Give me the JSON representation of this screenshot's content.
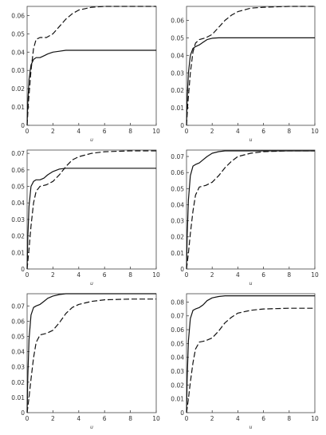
{
  "chart_data": [
    {
      "type": "line",
      "xlabel": "u",
      "ylabel": "",
      "xlim": [
        0,
        10
      ],
      "ylim": [
        0,
        0.065
      ],
      "xticks": [
        0,
        2,
        4,
        6,
        8,
        10
      ],
      "yticks": [
        0,
        0.01,
        0.02,
        0.03,
        0.04,
        0.05,
        0.06
      ],
      "series": [
        {
          "style": "solid",
          "x": [
            0,
            0.05,
            0.15,
            0.3,
            0.5,
            0.7,
            1.0,
            1.3,
            1.6,
            2.0,
            2.5,
            3.0,
            4.0,
            6.0,
            10.0
          ],
          "y": [
            0,
            0.012,
            0.025,
            0.033,
            0.036,
            0.037,
            0.037,
            0.038,
            0.039,
            0.04,
            0.0405,
            0.041,
            0.041,
            0.041,
            0.041
          ]
        },
        {
          "style": "dashed",
          "x": [
            0,
            0.1,
            0.3,
            0.5,
            0.7,
            1.0,
            1.5,
            2.0,
            2.5,
            3.0,
            3.5,
            4.0,
            5.0,
            6.0,
            8.0,
            10.0
          ],
          "y": [
            0,
            0.012,
            0.03,
            0.042,
            0.047,
            0.048,
            0.048,
            0.05,
            0.054,
            0.058,
            0.061,
            0.063,
            0.0645,
            0.065,
            0.065,
            0.065
          ]
        }
      ]
    },
    {
      "type": "line",
      "xlabel": "u",
      "ylabel": "",
      "xlim": [
        0,
        10
      ],
      "ylim": [
        0,
        0.068
      ],
      "xticks": [
        0,
        2,
        4,
        6,
        8,
        10
      ],
      "yticks": [
        0,
        0.01,
        0.02,
        0.03,
        0.04,
        0.05,
        0.06
      ],
      "series": [
        {
          "style": "solid",
          "x": [
            0,
            0.05,
            0.15,
            0.3,
            0.5,
            0.7,
            1.0,
            1.3,
            1.6,
            2.0,
            2.5,
            3.0,
            4.0,
            6.0,
            10.0
          ],
          "y": [
            0,
            0.015,
            0.03,
            0.04,
            0.044,
            0.045,
            0.046,
            0.0475,
            0.049,
            0.0498,
            0.05,
            0.05,
            0.05,
            0.05,
            0.05
          ]
        },
        {
          "style": "dashed",
          "x": [
            0,
            0.1,
            0.3,
            0.5,
            0.7,
            1.0,
            1.5,
            2.0,
            2.5,
            3.0,
            3.5,
            4.0,
            5.0,
            6.0,
            8.0,
            10.0
          ],
          "y": [
            0,
            0.012,
            0.03,
            0.042,
            0.047,
            0.049,
            0.05,
            0.052,
            0.056,
            0.06,
            0.063,
            0.065,
            0.067,
            0.0675,
            0.068,
            0.068
          ]
        }
      ]
    },
    {
      "type": "line",
      "xlabel": "u",
      "ylabel": "",
      "xlim": [
        0,
        10
      ],
      "ylim": [
        0,
        0.072
      ],
      "xticks": [
        0,
        2,
        4,
        6,
        8,
        10
      ],
      "yticks": [
        0,
        0.01,
        0.02,
        0.03,
        0.04,
        0.05,
        0.06,
        0.07
      ],
      "series": [
        {
          "style": "solid",
          "x": [
            0,
            0.05,
            0.15,
            0.3,
            0.5,
            0.7,
            1.0,
            1.3,
            1.6,
            2.0,
            2.5,
            3.0,
            4.0,
            6.0,
            10.0
          ],
          "y": [
            0,
            0.018,
            0.038,
            0.05,
            0.053,
            0.054,
            0.054,
            0.055,
            0.057,
            0.059,
            0.0605,
            0.061,
            0.061,
            0.061,
            0.061
          ]
        },
        {
          "style": "dashed",
          "x": [
            0,
            0.15,
            0.3,
            0.5,
            0.7,
            1.0,
            1.5,
            2.0,
            2.5,
            3.0,
            3.5,
            4.0,
            5.0,
            6.0,
            8.0,
            10.0
          ],
          "y": [
            0,
            0.012,
            0.026,
            0.04,
            0.047,
            0.05,
            0.051,
            0.053,
            0.057,
            0.062,
            0.066,
            0.068,
            0.07,
            0.071,
            0.0715,
            0.0715
          ]
        }
      ]
    },
    {
      "type": "line",
      "xlabel": "u",
      "ylabel": "",
      "xlim": [
        0,
        10
      ],
      "ylim": [
        0,
        0.074
      ],
      "xticks": [
        0,
        2,
        4,
        6,
        8,
        10
      ],
      "yticks": [
        0,
        0.01,
        0.02,
        0.03,
        0.04,
        0.05,
        0.06,
        0.07
      ],
      "series": [
        {
          "style": "solid",
          "x": [
            0,
            0.05,
            0.15,
            0.3,
            0.5,
            0.7,
            1.0,
            1.3,
            1.6,
            2.0,
            2.5,
            3.0,
            4.0,
            6.0,
            10.0
          ],
          "y": [
            0,
            0.02,
            0.043,
            0.058,
            0.064,
            0.065,
            0.066,
            0.068,
            0.07,
            0.072,
            0.073,
            0.0735,
            0.0735,
            0.0735,
            0.0735
          ]
        },
        {
          "style": "dashed",
          "x": [
            0,
            0.15,
            0.3,
            0.5,
            0.7,
            1.0,
            1.5,
            2.0,
            2.5,
            3.0,
            3.5,
            4.0,
            5.0,
            6.0,
            8.0,
            10.0
          ],
          "y": [
            0,
            0.01,
            0.022,
            0.036,
            0.046,
            0.051,
            0.052,
            0.054,
            0.058,
            0.063,
            0.067,
            0.07,
            0.072,
            0.073,
            0.0735,
            0.0735
          ]
        }
      ]
    },
    {
      "type": "line",
      "xlabel": "u",
      "ylabel": "",
      "xlim": [
        0,
        10
      ],
      "ylim": [
        0,
        0.078
      ],
      "xticks": [
        0,
        2,
        4,
        6,
        8,
        10
      ],
      "yticks": [
        0,
        0.01,
        0.02,
        0.03,
        0.04,
        0.05,
        0.06,
        0.07
      ],
      "series": [
        {
          "style": "solid",
          "x": [
            0,
            0.05,
            0.15,
            0.3,
            0.5,
            0.7,
            1.0,
            1.3,
            1.6,
            2.0,
            2.5,
            3.0,
            4.0,
            6.0,
            10.0
          ],
          "y": [
            0,
            0.022,
            0.048,
            0.064,
            0.069,
            0.07,
            0.071,
            0.073,
            0.075,
            0.0765,
            0.0775,
            0.078,
            0.078,
            0.078,
            0.078
          ]
        },
        {
          "style": "dashed",
          "x": [
            0,
            0.15,
            0.3,
            0.5,
            0.7,
            1.0,
            1.5,
            2.0,
            2.5,
            3.0,
            3.5,
            4.0,
            5.0,
            6.0,
            8.0,
            10.0
          ],
          "y": [
            0,
            0.01,
            0.022,
            0.036,
            0.046,
            0.051,
            0.052,
            0.054,
            0.059,
            0.065,
            0.069,
            0.071,
            0.073,
            0.074,
            0.0745,
            0.0745
          ]
        }
      ]
    },
    {
      "type": "line",
      "xlabel": "u",
      "ylabel": "",
      "xlim": [
        0,
        10
      ],
      "ylim": [
        0,
        0.086
      ],
      "xticks": [
        0,
        2,
        4,
        6,
        8,
        10
      ],
      "yticks": [
        0,
        0.01,
        0.02,
        0.03,
        0.04,
        0.05,
        0.06,
        0.07,
        0.08
      ],
      "series": [
        {
          "style": "solid",
          "x": [
            0,
            0.05,
            0.15,
            0.3,
            0.5,
            0.7,
            1.0,
            1.3,
            1.6,
            2.0,
            2.5,
            3.0,
            4.0,
            6.0,
            10.0
          ],
          "y": [
            0,
            0.024,
            0.052,
            0.068,
            0.074,
            0.075,
            0.076,
            0.078,
            0.081,
            0.083,
            0.084,
            0.0845,
            0.0845,
            0.0845,
            0.0845
          ]
        },
        {
          "style": "dashed",
          "x": [
            0,
            0.15,
            0.3,
            0.5,
            0.7,
            1.0,
            1.5,
            2.0,
            2.5,
            3.0,
            3.5,
            4.0,
            5.0,
            6.0,
            8.0,
            10.0
          ],
          "y": [
            0,
            0.01,
            0.022,
            0.036,
            0.046,
            0.051,
            0.052,
            0.054,
            0.059,
            0.065,
            0.069,
            0.072,
            0.074,
            0.075,
            0.0755,
            0.0755
          ]
        }
      ]
    }
  ]
}
